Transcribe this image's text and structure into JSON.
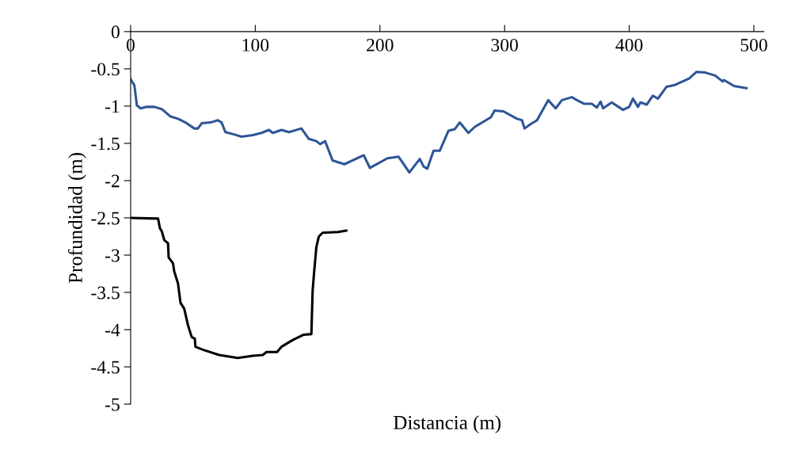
{
  "chart_data": {
    "type": "line",
    "xlabel": "Distancia (m)",
    "ylabel": "Profundidad (m)",
    "xlim": [
      0,
      508
    ],
    "ylim": [
      -5,
      0
    ],
    "xticks": [
      0,
      100,
      200,
      300,
      400,
      500
    ],
    "yticks": [
      {
        "value": -5,
        "label": "-5"
      },
      {
        "value": -4.5,
        "label": "-4.5"
      },
      {
        "value": -4,
        "label": "-4"
      },
      {
        "value": -3.5,
        "label": "-3.5"
      },
      {
        "value": -3,
        "label": "-3"
      },
      {
        "value": -2.5,
        "label": "-2.5"
      },
      {
        "value": -2,
        "label": "-2"
      },
      {
        "value": -1.5,
        "label": "-1.5"
      },
      {
        "value": -1,
        "label": "-1"
      },
      {
        "value": -0.5,
        "label": "-0.5"
      },
      {
        "value": 0,
        "label": "0"
      }
    ],
    "marker": "none",
    "line_style": "solid",
    "series": [
      {
        "color": "#2e5597",
        "x": [
          0,
          3,
          5,
          8,
          13,
          19,
          25,
          32,
          38,
          44,
          51,
          54,
          57,
          64,
          70,
          73,
          76,
          83,
          89,
          98,
          105,
          111,
          114,
          121,
          127,
          137,
          143,
          149,
          152,
          156,
          162,
          171.5,
          187,
          192,
          206,
          215,
          223.6,
          232,
          235,
          238,
          243,
          248,
          255,
          260,
          264,
          271,
          276,
          289,
          292,
          299,
          310,
          314,
          316,
          321,
          326,
          335,
          341,
          346,
          354,
          358,
          364,
          370,
          374,
          377,
          379,
          386,
          395,
          400,
          403,
          407,
          409,
          414,
          419,
          423,
          430,
          436,
          448,
          454,
          461,
          469,
          475,
          476,
          484,
          494
        ],
        "values": [
          -0.64,
          -0.72,
          -0.99,
          -1.03,
          -1.01,
          -1.01,
          -1.04,
          -1.14,
          -1.17,
          -1.22,
          -1.3,
          -1.3,
          -1.23,
          -1.22,
          -1.19,
          -1.22,
          -1.35,
          -1.38,
          -1.41,
          -1.39,
          -1.36,
          -1.32,
          -1.36,
          -1.32,
          -1.35,
          -1.3,
          -1.44,
          -1.47,
          -1.51,
          -1.47,
          -1.73,
          -1.78,
          -1.66,
          -1.83,
          -1.7,
          -1.68,
          -1.89,
          -1.71,
          -1.81,
          -1.84,
          -1.6,
          -1.6,
          -1.33,
          -1.31,
          -1.22,
          -1.36,
          -1.28,
          -1.15,
          -1.06,
          -1.07,
          -1.17,
          -1.19,
          -1.3,
          -1.24,
          -1.19,
          -0.92,
          -1.03,
          -0.92,
          -0.88,
          -0.92,
          -0.97,
          -0.97,
          -1.02,
          -0.94,
          -1.03,
          -0.95,
          -1.05,
          -1.01,
          -0.9,
          -1.01,
          -0.95,
          -0.98,
          -0.86,
          -0.9,
          -0.74,
          -0.72,
          -0.63,
          -0.54,
          -0.55,
          -0.59,
          -0.67,
          -0.65,
          -0.73,
          -0.76
        ]
      },
      {
        "color": "#000000",
        "x": [
          0,
          22,
          23.5,
          25,
          27,
          30,
          30.5,
          34,
          35,
          38,
          40,
          43,
          46,
          49,
          51.5,
          52,
          58,
          71,
          86,
          98,
          106,
          109,
          117.5,
          121,
          130,
          138.5,
          145,
          146,
          147,
          149,
          151,
          154,
          166.5,
          173
        ],
        "values": [
          -2.5,
          -2.51,
          -2.64,
          -2.68,
          -2.8,
          -2.84,
          -3.03,
          -3.11,
          -3.22,
          -3.38,
          -3.64,
          -3.72,
          -3.94,
          -4.1,
          -4.12,
          -4.23,
          -4.27,
          -4.34,
          -4.38,
          -4.35,
          -4.34,
          -4.3,
          -4.3,
          -4.23,
          -4.14,
          -4.07,
          -4.06,
          -3.48,
          -3.27,
          -2.89,
          -2.75,
          -2.7,
          -2.69,
          -2.67
        ]
      }
    ]
  }
}
